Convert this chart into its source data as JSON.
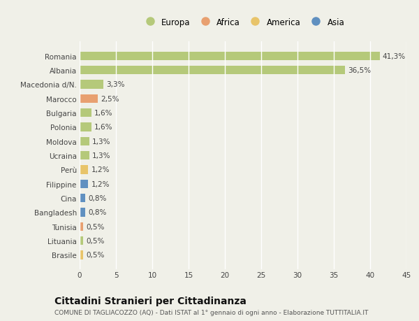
{
  "categories": [
    "Brasile",
    "Lituania",
    "Tunisia",
    "Bangladesh",
    "Cina",
    "Filippine",
    "Perù",
    "Ucraina",
    "Moldova",
    "Polonia",
    "Bulgaria",
    "Marocco",
    "Macedonia d/N.",
    "Albania",
    "Romania"
  ],
  "values": [
    0.5,
    0.5,
    0.5,
    0.8,
    0.8,
    1.2,
    1.2,
    1.3,
    1.3,
    1.6,
    1.6,
    2.5,
    3.3,
    36.5,
    41.3
  ],
  "labels": [
    "0,5%",
    "0,5%",
    "0,5%",
    "0,8%",
    "0,8%",
    "1,2%",
    "1,2%",
    "1,3%",
    "1,3%",
    "1,6%",
    "1,6%",
    "2,5%",
    "3,3%",
    "36,5%",
    "41,3%"
  ],
  "bar_colors": [
    "#e8c46a",
    "#b5c97a",
    "#e8a070",
    "#6090c0",
    "#6090c0",
    "#6090c0",
    "#e8c46a",
    "#b5c97a",
    "#b5c97a",
    "#b5c97a",
    "#b5c97a",
    "#e8a070",
    "#b5c97a",
    "#b5c97a",
    "#b5c97a"
  ],
  "legend_labels": [
    "Europa",
    "Africa",
    "America",
    "Asia"
  ],
  "legend_colors": [
    "#b5c97a",
    "#e8a070",
    "#e8c46a",
    "#6090c0"
  ],
  "xlim": [
    0,
    45
  ],
  "xticks": [
    0,
    5,
    10,
    15,
    20,
    25,
    30,
    35,
    40,
    45
  ],
  "title": "Cittadini Stranieri per Cittadinanza",
  "subtitle": "COMUNE DI TAGLIACOZZO (AQ) - Dati ISTAT al 1° gennaio di ogni anno - Elaborazione TUTTITALIA.IT",
  "bg_color": "#f0f0e8",
  "grid_color": "#ffffff",
  "bar_height": 0.6
}
